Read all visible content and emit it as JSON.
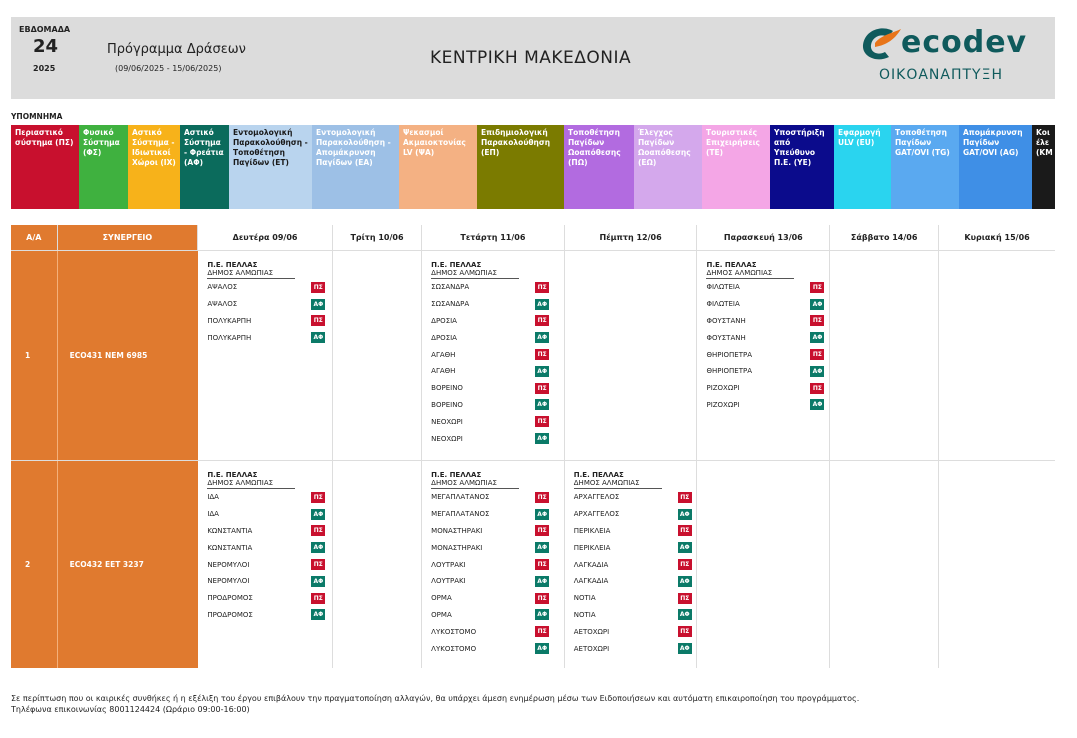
{
  "header": {
    "week_label": "ΕΒΔΟΜΑΔΑ",
    "week_number": "24",
    "year": "2025",
    "program_title": "Πρόγραμμα Δράσεων",
    "date_range": "(09/06/2025 - 15/06/2025)",
    "region": "ΚΕΝΤΡΙΚΗ ΜΑΚΕΔΟΝΙΑ",
    "logo_word": "ecodev",
    "logo_sub": "ΟΙΚΟΑΝΑΠΤΥΞΗ"
  },
  "legend": {
    "title": "ΥΠΟΜΝΗΜΑ",
    "items": [
      {
        "label": "Περιαστικό σύστημα (ΠΣ)",
        "color": "#c8102e",
        "text": "#ffffff",
        "w": 68
      },
      {
        "label": "Φυσικό Σύστημα (ΦΣ)",
        "color": "#3fb13f",
        "text": "#ffffff",
        "w": 49
      },
      {
        "label": "Αστικό Σύστημα - Ιδιωτικοί Χώροι (ΙΧ)",
        "color": "#f7b21a",
        "text": "#ffffff",
        "w": 52
      },
      {
        "label": "Αστικό Σύστημα - Φρεάτια (ΑΦ)",
        "color": "#0b6b5c",
        "text": "#ffffff",
        "w": 49
      },
      {
        "label": "Εντομολογική Παρακολούθηση - Τοποθέτηση Παγίδων (ΕΤ)",
        "color": "#b9d4ee",
        "text": "#1a1a1a",
        "w": 83
      },
      {
        "label": "Εντομολογική Παρακολούθηση - Απομάκρυνση Παγίδων (ΕΑ)",
        "color": "#9dc0e6",
        "text": "#ffffff",
        "w": 87
      },
      {
        "label": "Ψεκασμοί Ακμαιοκτονίας LV (ΨΑ)",
        "color": "#f4b183",
        "text": "#ffffff",
        "w": 78
      },
      {
        "label": "Επιδημιολογική Παρακολούθηση (ΕΠ)",
        "color": "#7b7b00",
        "text": "#ffffff",
        "w": 87
      },
      {
        "label": "Τοποθέτηση Παγίδων Ωοαπόθεσης (ΠΩ)",
        "color": "#b26be0",
        "text": "#ffffff",
        "w": 70
      },
      {
        "label": "Έλεγχος Παγίδων Ωοαπόθεσης (ΕΩ)",
        "color": "#d4a8ec",
        "text": "#ffffff",
        "w": 68
      },
      {
        "label": "Τουριστικές Επιχειρήσεις (ΤΕ)",
        "color": "#f4a6e6",
        "text": "#ffffff",
        "w": 68
      },
      {
        "label": "Υποστήριξη από Υπεύθυνο Π.Ε. (ΥΕ)",
        "color": "#0b0b8c",
        "text": "#ffffff",
        "w": 64
      },
      {
        "label": "Εφαρμογή ULV (EU)",
        "color": "#2ad4ef",
        "text": "#ffffff",
        "w": 57
      },
      {
        "label": "Τοποθέτηση Παγίδων GAT/OVI (TG)",
        "color": "#5aa9f0",
        "text": "#ffffff",
        "w": 68
      },
      {
        "label": "Απομάκρυνση Παγίδων GAT/OVI (AG)",
        "color": "#3f8fe6",
        "text": "#ffffff",
        "w": 73
      },
      {
        "label": "Κοι έλε (ΚΜ",
        "color": "#1a1a1a",
        "text": "#ffffff",
        "w": 23
      }
    ]
  },
  "table": {
    "col_aa": "Α/Α",
    "col_crew": "ΣΥΝΕΡΓΕΙΟ",
    "days": [
      "Δευτέρα 09/06",
      "Τρίτη 10/06",
      "Τετάρτη 11/06",
      "Πέμπτη 12/06",
      "Παρασκευή 13/06",
      "Σάββατο 14/06",
      "Κυριακή 15/06"
    ],
    "rows": [
      {
        "aa": "1",
        "crew": "ECO431  ΝΕΜ 6985",
        "cells": [
          {
            "pe": "Π.Ε. ΠΕΛΛΑΣ",
            "dimos": "ΔΗΜΟΣ ΑΛΜΩΠΙΑΣ",
            "items": [
              [
                "ΑΨΑΛΟΣ",
                "ΠΣ"
              ],
              [
                "ΑΨΑΛΟΣ",
                "ΑΦ"
              ],
              [
                "ΠΟΛΥΚΑΡΠΗ",
                "ΠΣ"
              ],
              [
                "ΠΟΛΥΚΑΡΠΗ",
                "ΑΦ"
              ]
            ]
          },
          null,
          {
            "pe": "Π.Ε. ΠΕΛΛΑΣ",
            "dimos": "ΔΗΜΟΣ ΑΛΜΩΠΙΑΣ",
            "items": [
              [
                "ΣΩΣΑΝΔΡΑ",
                "ΠΣ"
              ],
              [
                "ΣΩΣΑΝΔΡΑ",
                "ΑΦ"
              ],
              [
                "ΔΡΟΣΙΑ",
                "ΠΣ"
              ],
              [
                "ΔΡΟΣΙΑ",
                "ΑΦ"
              ],
              [
                "ΑΓΑΘΗ",
                "ΠΣ"
              ],
              [
                "ΑΓΑΘΗ",
                "ΑΦ"
              ],
              [
                "ΒΟΡΕΙΝΟ",
                "ΠΣ"
              ],
              [
                "ΒΟΡΕΙΝΟ",
                "ΑΦ"
              ],
              [
                "ΝΕΟΧΩΡΙ",
                "ΠΣ"
              ],
              [
                "ΝΕΟΧΩΡΙ",
                "ΑΦ"
              ]
            ]
          },
          null,
          {
            "pe": "Π.Ε. ΠΕΛΛΑΣ",
            "dimos": "ΔΗΜΟΣ ΑΛΜΩΠΙΑΣ",
            "items": [
              [
                "ΦΙΛΩΤΕΙΑ",
                "ΠΣ"
              ],
              [
                "ΦΙΛΩΤΕΙΑ",
                "ΑΦ"
              ],
              [
                "ΦΟΥΣΤΑΝΗ",
                "ΠΣ"
              ],
              [
                "ΦΟΥΣΤΑΝΗ",
                "ΑΦ"
              ],
              [
                "ΘΗΡΙΟΠΕΤΡΑ",
                "ΠΣ"
              ],
              [
                "ΘΗΡΙΟΠΕΤΡΑ",
                "ΑΦ"
              ],
              [
                "ΡΙΖΟΧΩΡΙ",
                "ΠΣ"
              ],
              [
                "ΡΙΖΟΧΩΡΙ",
                "ΑΦ"
              ]
            ]
          },
          null,
          null
        ]
      },
      {
        "aa": "2",
        "crew": "ECO432  ΕΕΤ 3237",
        "cells": [
          {
            "pe": "Π.Ε. ΠΕΛΛΑΣ",
            "dimos": "ΔΗΜΟΣ ΑΛΜΩΠΙΑΣ",
            "items": [
              [
                "ΙΔΑ",
                "ΠΣ"
              ],
              [
                "ΙΔΑ",
                "ΑΦ"
              ],
              [
                "ΚΩΝΣΤΑΝΤΙΑ",
                "ΠΣ"
              ],
              [
                "ΚΩΝΣΤΑΝΤΙΑ",
                "ΑΦ"
              ],
              [
                "ΝΕΡΟΜΥΛΟΙ",
                "ΠΣ"
              ],
              [
                "ΝΕΡΟΜΥΛΟΙ",
                "ΑΦ"
              ],
              [
                "ΠΡΟΔΡΟΜΟΣ",
                "ΠΣ"
              ],
              [
                "ΠΡΟΔΡΟΜΟΣ",
                "ΑΦ"
              ]
            ]
          },
          null,
          {
            "pe": "Π.Ε. ΠΕΛΛΑΣ",
            "dimos": "ΔΗΜΟΣ ΑΛΜΩΠΙΑΣ",
            "items": [
              [
                "ΜΕΓΑΠΛΑΤΑΝΟΣ",
                "ΠΣ"
              ],
              [
                "ΜΕΓΑΠΛΑΤΑΝΟΣ",
                "ΑΦ"
              ],
              [
                "ΜΟΝΑΣΤΗΡΑΚΙ",
                "ΠΣ"
              ],
              [
                "ΜΟΝΑΣΤΗΡΑΚΙ",
                "ΑΦ"
              ],
              [
                "ΛΟΥΤΡΑΚΙ",
                "ΠΣ"
              ],
              [
                "ΛΟΥΤΡΑΚΙ",
                "ΑΦ"
              ],
              [
                "ΟΡΜΑ",
                "ΠΣ"
              ],
              [
                "ΟΡΜΑ",
                "ΑΦ"
              ],
              [
                "ΛΥΚΟΣΤΟΜΟ",
                "ΠΣ"
              ],
              [
                "ΛΥΚΟΣΤΟΜΟ",
                "ΑΦ"
              ]
            ]
          },
          {
            "pe": "Π.Ε. ΠΕΛΛΑΣ",
            "dimos": "ΔΗΜΟΣ ΑΛΜΩΠΙΑΣ",
            "items": [
              [
                "ΑΡΧΑΓΓΕΛΟΣ",
                "ΠΣ"
              ],
              [
                "ΑΡΧΑΓΓΕΛΟΣ",
                "ΑΦ"
              ],
              [
                "ΠΕΡΙΚΛΕΙΑ",
                "ΠΣ"
              ],
              [
                "ΠΕΡΙΚΛΕΙΑ",
                "ΑΦ"
              ],
              [
                "ΛΑΓΚΑΔΙΑ",
                "ΠΣ"
              ],
              [
                "ΛΑΓΚΑΔΙΑ",
                "ΑΦ"
              ],
              [
                "ΝΟΤΙΑ",
                "ΠΣ"
              ],
              [
                "ΝΟΤΙΑ",
                "ΑΦ"
              ],
              [
                "ΑΕΤΟΧΩΡΙ",
                "ΠΣ"
              ],
              [
                "ΑΕΤΟΧΩΡΙ",
                "ΑΦ"
              ]
            ]
          },
          null,
          null,
          null
        ]
      }
    ]
  },
  "footer": {
    "line1": "Σε περίπτωση που οι καιρικές συνθήκες ή η εξέλιξη του έργου επιβάλουν την πραγματοποίηση αλλαγών, θα υπάρχει άμεση ενημέρωση μέσω των Ειδοποιήσεων και αυτόματη επικαιροποίηση του προγράμματος.",
    "line2": "Τηλέφωνα επικοινωνίας 8001124424 (Ωράριο 09:00-16:00)"
  }
}
